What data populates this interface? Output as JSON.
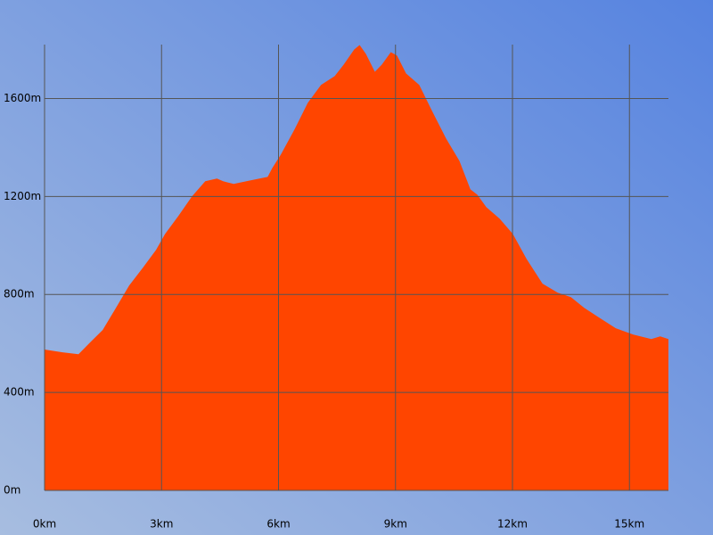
{
  "chart_data": {
    "type": "area",
    "color": "#ff4500",
    "grid": true,
    "x": [
      0,
      0.46,
      0.87,
      1.14,
      1.49,
      1.83,
      2.17,
      2.52,
      2.86,
      3.09,
      3.43,
      3.78,
      4.12,
      4.42,
      4.58,
      4.85,
      5.26,
      5.72,
      5.84,
      6.06,
      6.41,
      6.75,
      7.09,
      7.44,
      7.67,
      7.94,
      8.08,
      8.24,
      8.47,
      8.65,
      8.88,
      9.04,
      9.27,
      9.61,
      9.95,
      10.3,
      10.64,
      10.92,
      11.1,
      11.33,
      11.67,
      12.01,
      12.36,
      12.77,
      13.16,
      13.5,
      13.84,
      14.19,
      14.65,
      15.1,
      15.56,
      15.79,
      16.0
    ],
    "values": [
      575,
      564,
      556,
      600,
      655,
      745,
      836,
      909,
      982,
      1047,
      1120,
      1200,
      1262,
      1273,
      1262,
      1251,
      1265,
      1280,
      1316,
      1371,
      1473,
      1582,
      1655,
      1691,
      1738,
      1800,
      1818,
      1782,
      1709,
      1738,
      1789,
      1775,
      1702,
      1655,
      1545,
      1436,
      1345,
      1229,
      1207,
      1156,
      1109,
      1047,
      945,
      844,
      807,
      789,
      745,
      709,
      662,
      636,
      618,
      629,
      618
    ],
    "xlim": [
      0,
      16
    ],
    "ylim": [
      0,
      1820
    ],
    "xticks": [
      {
        "value": 0,
        "label": "0km"
      },
      {
        "value": 3,
        "label": "3km"
      },
      {
        "value": 6,
        "label": "6km"
      },
      {
        "value": 9,
        "label": "9km"
      },
      {
        "value": 12,
        "label": "12km"
      },
      {
        "value": 15,
        "label": "15km"
      }
    ],
    "yticks": [
      {
        "value": 0,
        "label": "0m"
      },
      {
        "value": 400,
        "label": "400m"
      },
      {
        "value": 800,
        "label": "800m"
      },
      {
        "value": 1200,
        "label": "1200m"
      },
      {
        "value": 1600,
        "label": "1600m"
      }
    ]
  }
}
